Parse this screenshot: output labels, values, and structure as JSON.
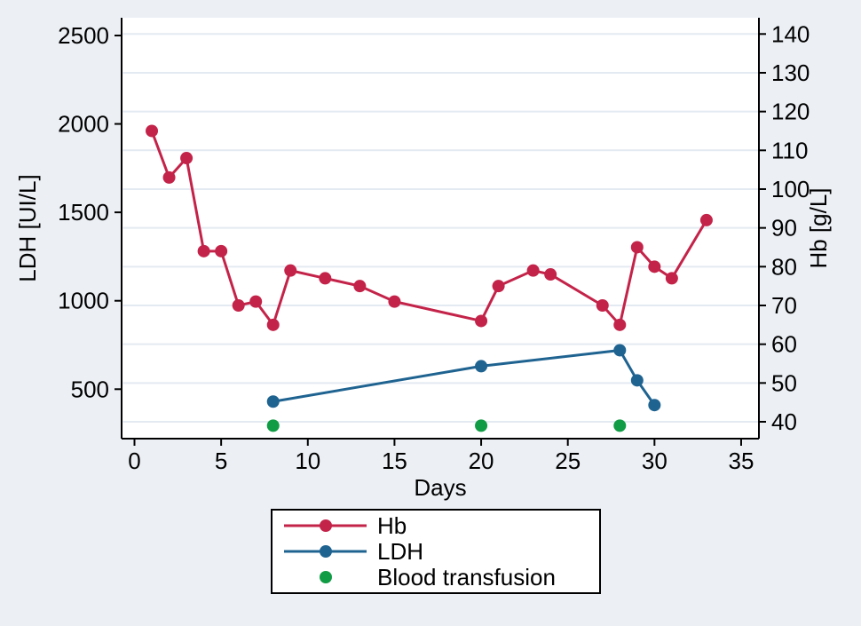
{
  "figure": {
    "background_color": "#ECF0F5",
    "plot_background_color": "#FFFFFF",
    "grid_color": "#E4EAF2",
    "axis_color": "#000000"
  },
  "chart_data": {
    "type": "line",
    "title": "",
    "xlabel": "Days",
    "ylabel_left": "LDH [UI/L]",
    "ylabel_right": "Hb [g/L]",
    "x_ticks": [
      0,
      5,
      10,
      15,
      20,
      25,
      30,
      35
    ],
    "xlim": [
      -0.75,
      36
    ],
    "left_axis": {
      "ticks": [
        500,
        1000,
        1500,
        2000,
        2500
      ],
      "range_shown": [
        300,
        2600
      ]
    },
    "right_axis": {
      "ticks": [
        40,
        50,
        60,
        70,
        80,
        90,
        100,
        110,
        120,
        130,
        140
      ],
      "range_shown": [
        39,
        140
      ]
    },
    "grid": "horizontal gridlines at right-axis (Hb) ticks",
    "legend_position": "bottom-center",
    "series": [
      {
        "name": "Hb",
        "axis": "right",
        "color": "#C42349",
        "marker": "circle",
        "line": true,
        "points": [
          [
            1,
            115
          ],
          [
            2,
            103
          ],
          [
            3,
            108
          ],
          [
            4,
            84
          ],
          [
            5,
            84
          ],
          [
            6,
            70
          ],
          [
            7,
            71
          ],
          [
            8,
            65
          ],
          [
            9,
            79
          ],
          [
            11,
            77
          ],
          [
            13,
            75
          ],
          [
            15,
            71
          ],
          [
            20,
            66
          ],
          [
            21,
            75
          ],
          [
            23,
            79
          ],
          [
            24,
            78
          ],
          [
            27,
            70
          ],
          [
            28,
            65
          ],
          [
            29,
            85
          ],
          [
            30,
            80
          ],
          [
            31,
            77
          ],
          [
            33,
            92
          ]
        ]
      },
      {
        "name": "LDH",
        "axis": "left",
        "color": "#1F6391",
        "marker": "circle",
        "line": true,
        "points": [
          [
            8,
            430
          ],
          [
            20,
            630
          ],
          [
            28,
            720
          ],
          [
            29,
            550
          ],
          [
            30,
            410
          ]
        ]
      },
      {
        "name": "Blood transfusion",
        "axis": "right",
        "color": "#109C44",
        "marker": "circle",
        "line": false,
        "note": "event markers plotted at axis baseline",
        "points": [
          [
            8,
            39
          ],
          [
            20,
            39
          ],
          [
            28,
            39
          ]
        ]
      }
    ]
  },
  "legend": {
    "items": [
      {
        "label": "Hb",
        "series_index": 0,
        "swatch": "line-marker"
      },
      {
        "label": "LDH",
        "series_index": 1,
        "swatch": "line-marker"
      },
      {
        "label": "Blood transfusion",
        "series_index": 2,
        "swatch": "marker"
      }
    ]
  }
}
